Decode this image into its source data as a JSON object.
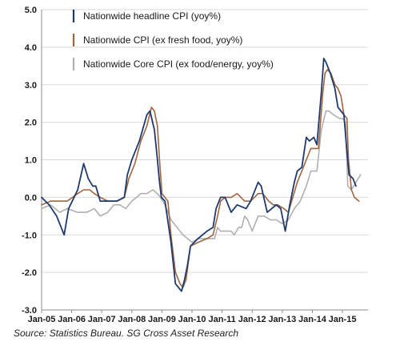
{
  "source_note": "Source: Statistics Bureau. SG Cross Asset Research",
  "chart_data": {
    "type": "line",
    "xlim": [
      2005.0,
      2015.85
    ],
    "ylim": [
      -3.0,
      5.0
    ],
    "y_ticks": [
      5.0,
      4.0,
      3.0,
      2.0,
      1.0,
      0.0,
      -1.0,
      -2.0,
      -3.0
    ],
    "y_tick_labels": [
      "5.0",
      "4.0",
      "3.0",
      "2.0",
      "1.0",
      "0.0",
      "-1.0",
      "-2.0",
      "-3.0"
    ],
    "x_ticks": [
      2005,
      2006,
      2007,
      2008,
      2009,
      2010,
      2011,
      2012,
      2013,
      2014,
      2015
    ],
    "x_tick_labels": [
      "Jan-05",
      "Jan-06",
      "Jan-07",
      "Jan-08",
      "Jan-09",
      "Jan-10",
      "Jan-11",
      "Jan-12",
      "Jan-13",
      "Jan-14",
      "Jan-15"
    ],
    "grid": "horizontal",
    "legend_position": "top-left",
    "series": [
      {
        "name": "Nationwide headline CPI (yoy%)",
        "color": "#1f3a6e",
        "points": [
          [
            2005.0,
            0.0
          ],
          [
            2005.25,
            -0.2
          ],
          [
            2005.5,
            -0.5
          ],
          [
            2005.75,
            -1.0
          ],
          [
            2005.9,
            -0.3
          ],
          [
            2006.2,
            0.2
          ],
          [
            2006.4,
            0.9
          ],
          [
            2006.55,
            0.5
          ],
          [
            2006.7,
            0.3
          ],
          [
            2006.8,
            0.3
          ],
          [
            2006.95,
            -0.1
          ],
          [
            2007.2,
            -0.1
          ],
          [
            2007.5,
            -0.1
          ],
          [
            2007.75,
            0.0
          ],
          [
            2007.85,
            0.6
          ],
          [
            2008.0,
            1.0
          ],
          [
            2008.25,
            1.5
          ],
          [
            2008.5,
            2.2
          ],
          [
            2008.6,
            2.3
          ],
          [
            2008.75,
            1.8
          ],
          [
            2008.85,
            1.0
          ],
          [
            2008.92,
            0.4
          ],
          [
            2008.98,
            0.0
          ],
          [
            2009.1,
            -0.1
          ],
          [
            2009.3,
            -1.2
          ],
          [
            2009.45,
            -2.3
          ],
          [
            2009.55,
            -2.4
          ],
          [
            2009.65,
            -2.5
          ],
          [
            2009.75,
            -2.2
          ],
          [
            2009.85,
            -1.8
          ],
          [
            2009.95,
            -1.3
          ],
          [
            2010.2,
            -1.1
          ],
          [
            2010.5,
            -0.9
          ],
          [
            2010.7,
            -0.8
          ],
          [
            2010.8,
            -0.3
          ],
          [
            2010.95,
            0.0
          ],
          [
            2011.1,
            0.0
          ],
          [
            2011.3,
            -0.4
          ],
          [
            2011.5,
            -0.2
          ],
          [
            2011.8,
            -0.3
          ],
          [
            2011.95,
            -0.1
          ],
          [
            2012.2,
            0.4
          ],
          [
            2012.3,
            0.3
          ],
          [
            2012.5,
            -0.4
          ],
          [
            2012.65,
            -0.3
          ],
          [
            2012.8,
            -0.2
          ],
          [
            2012.95,
            -0.3
          ],
          [
            2013.1,
            -0.9
          ],
          [
            2013.25,
            -0.2
          ],
          [
            2013.4,
            0.4
          ],
          [
            2013.5,
            0.7
          ],
          [
            2013.65,
            0.8
          ],
          [
            2013.8,
            1.6
          ],
          [
            2013.9,
            1.5
          ],
          [
            2014.05,
            1.6
          ],
          [
            2014.15,
            1.4
          ],
          [
            2014.3,
            2.8
          ],
          [
            2014.38,
            3.7
          ],
          [
            2014.45,
            3.6
          ],
          [
            2014.6,
            3.3
          ],
          [
            2014.75,
            2.9
          ],
          [
            2014.85,
            2.4
          ],
          [
            2014.95,
            2.3
          ],
          [
            2015.05,
            2.2
          ],
          [
            2015.15,
            1.2
          ],
          [
            2015.22,
            0.6
          ],
          [
            2015.35,
            0.5
          ],
          [
            2015.45,
            0.3
          ]
        ]
      },
      {
        "name": "Nationwide CPI (ex fresh food, yoy%)",
        "color": "#a0663f",
        "points": [
          [
            2005.0,
            -0.2
          ],
          [
            2005.3,
            -0.1
          ],
          [
            2005.6,
            -0.1
          ],
          [
            2005.85,
            -0.1
          ],
          [
            2006.2,
            0.1
          ],
          [
            2006.4,
            0.2
          ],
          [
            2006.6,
            0.2
          ],
          [
            2006.75,
            0.1
          ],
          [
            2006.95,
            0.0
          ],
          [
            2007.2,
            -0.1
          ],
          [
            2007.5,
            -0.1
          ],
          [
            2007.75,
            0.0
          ],
          [
            2007.9,
            0.5
          ],
          [
            2008.1,
            0.9
          ],
          [
            2008.3,
            1.5
          ],
          [
            2008.5,
            1.9
          ],
          [
            2008.65,
            2.4
          ],
          [
            2008.75,
            2.3
          ],
          [
            2008.85,
            1.9
          ],
          [
            2008.92,
            1.0
          ],
          [
            2009.0,
            0.1
          ],
          [
            2009.2,
            -0.1
          ],
          [
            2009.3,
            -1.0
          ],
          [
            2009.45,
            -2.0
          ],
          [
            2009.6,
            -2.3
          ],
          [
            2009.7,
            -2.4
          ],
          [
            2009.8,
            -2.2
          ],
          [
            2009.95,
            -1.3
          ],
          [
            2010.2,
            -1.2
          ],
          [
            2010.5,
            -1.1
          ],
          [
            2010.7,
            -1.0
          ],
          [
            2010.85,
            -0.5
          ],
          [
            2010.95,
            -0.1
          ],
          [
            2011.1,
            0.0
          ],
          [
            2011.3,
            0.0
          ],
          [
            2011.5,
            0.1
          ],
          [
            2011.75,
            -0.1
          ],
          [
            2011.95,
            -0.1
          ],
          [
            2012.2,
            0.1
          ],
          [
            2012.35,
            0.1
          ],
          [
            2012.55,
            -0.1
          ],
          [
            2012.7,
            -0.2
          ],
          [
            2012.85,
            -0.2
          ],
          [
            2013.05,
            -0.3
          ],
          [
            2013.2,
            -0.4
          ],
          [
            2013.35,
            0.0
          ],
          [
            2013.5,
            0.4
          ],
          [
            2013.65,
            0.7
          ],
          [
            2013.8,
            1.0
          ],
          [
            2013.95,
            1.3
          ],
          [
            2014.1,
            1.3
          ],
          [
            2014.2,
            1.3
          ],
          [
            2014.35,
            2.8
          ],
          [
            2014.42,
            3.3
          ],
          [
            2014.5,
            3.4
          ],
          [
            2014.62,
            3.3
          ],
          [
            2014.75,
            3.0
          ],
          [
            2014.85,
            2.9
          ],
          [
            2014.95,
            2.7
          ],
          [
            2015.05,
            2.2
          ],
          [
            2015.15,
            2.1
          ],
          [
            2015.2,
            1.0
          ],
          [
            2015.3,
            0.2
          ],
          [
            2015.4,
            0.0
          ],
          [
            2015.55,
            -0.1
          ]
        ]
      },
      {
        "name": "Nationwide Core CPI (ex food/energy, yoy%)",
        "color": "#b0b0b0",
        "points": [
          [
            2005.0,
            -0.3
          ],
          [
            2005.3,
            -0.2
          ],
          [
            2005.6,
            -0.4
          ],
          [
            2005.85,
            -0.3
          ],
          [
            2006.2,
            -0.4
          ],
          [
            2006.5,
            -0.4
          ],
          [
            2006.75,
            -0.3
          ],
          [
            2006.95,
            -0.5
          ],
          [
            2007.2,
            -0.4
          ],
          [
            2007.4,
            -0.2
          ],
          [
            2007.6,
            -0.2
          ],
          [
            2007.8,
            -0.3
          ],
          [
            2008.0,
            -0.1
          ],
          [
            2008.3,
            0.1
          ],
          [
            2008.5,
            0.1
          ],
          [
            2008.7,
            0.2
          ],
          [
            2008.85,
            0.1
          ],
          [
            2008.95,
            0.0
          ],
          [
            2009.1,
            -0.2
          ],
          [
            2009.3,
            -0.6
          ],
          [
            2009.5,
            -0.8
          ],
          [
            2009.7,
            -1.0
          ],
          [
            2009.85,
            -1.1
          ],
          [
            2010.0,
            -1.2
          ],
          [
            2010.2,
            -1.1
          ],
          [
            2010.4,
            -1.1
          ],
          [
            2010.5,
            -1.1
          ],
          [
            2010.75,
            -1.1
          ],
          [
            2010.85,
            -0.8
          ],
          [
            2010.95,
            -0.9
          ],
          [
            2011.1,
            -0.9
          ],
          [
            2011.3,
            -0.9
          ],
          [
            2011.4,
            -1.0
          ],
          [
            2011.55,
            -0.8
          ],
          [
            2011.65,
            -0.8
          ],
          [
            2011.75,
            -0.5
          ],
          [
            2011.85,
            -0.6
          ],
          [
            2012.0,
            -0.9
          ],
          [
            2012.2,
            -0.5
          ],
          [
            2012.4,
            -0.5
          ],
          [
            2012.6,
            -0.6
          ],
          [
            2012.8,
            -0.6
          ],
          [
            2013.0,
            -0.7
          ],
          [
            2013.2,
            -0.6
          ],
          [
            2013.4,
            -0.3
          ],
          [
            2013.6,
            -0.1
          ],
          [
            2013.8,
            0.3
          ],
          [
            2013.95,
            0.7
          ],
          [
            2014.1,
            0.7
          ],
          [
            2014.15,
            0.7
          ],
          [
            2014.3,
            1.8
          ],
          [
            2014.45,
            2.3
          ],
          [
            2014.55,
            2.3
          ],
          [
            2014.7,
            2.2
          ],
          [
            2014.9,
            2.1
          ],
          [
            2015.0,
            2.1
          ],
          [
            2015.1,
            2.0
          ],
          [
            2015.18,
            0.3
          ],
          [
            2015.3,
            0.2
          ],
          [
            2015.45,
            0.4
          ],
          [
            2015.6,
            0.6
          ]
        ]
      }
    ]
  }
}
